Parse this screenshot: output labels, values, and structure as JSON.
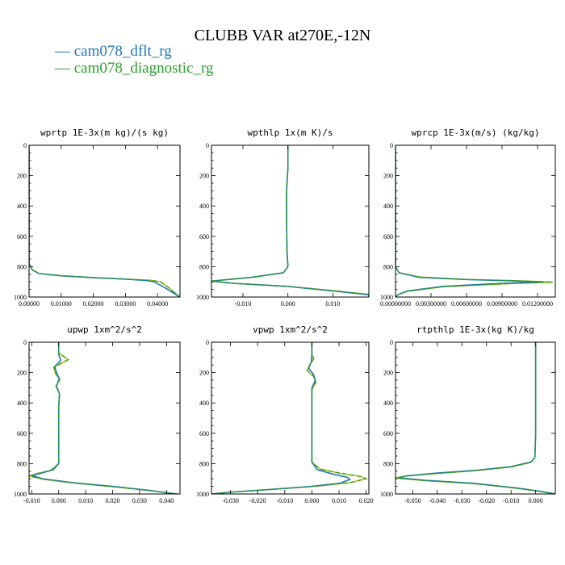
{
  "figure": {
    "title": "CLUBB VAR at270E,-12N",
    "legend": [
      {
        "name": "cam078_dflt_rg",
        "color": "#1f77b4",
        "dash": ""
      },
      {
        "name": "cam078_diagnostic_rg",
        "color": "#2ca02c",
        "dash": ""
      }
    ],
    "series_colors": {
      "dflt": "#1f77b4",
      "diagnostic": "#2ca02c",
      "diagnostic_alt": "#c8c800"
    }
  },
  "chart_data": [
    {
      "type": "line",
      "title": "wprtp  1E-3x(m kg)/(s kg)",
      "xlim": [
        0.0,
        0.047
      ],
      "ylim": [
        1000,
        0
      ],
      "xticks": [
        0.0,
        0.01,
        0.02,
        0.03,
        0.04
      ],
      "xtick_labels": [
        "0.00000",
        "0.01000",
        "0.02000",
        "0.03000",
        "0.04000"
      ],
      "yticks": [
        0,
        200,
        400,
        600,
        800,
        1000
      ],
      "series": [
        {
          "key": "dflt",
          "points": [
            [
              0,
              0
            ],
            [
              0,
              780
            ],
            [
              0.001,
              820
            ],
            [
              0.003,
              845
            ],
            [
              0.01,
              860
            ],
            [
              0.02,
              872
            ],
            [
              0.03,
              882
            ],
            [
              0.037,
              892
            ],
            [
              0.039,
              900
            ],
            [
              0.042,
              935
            ],
            [
              0.047,
              1000
            ]
          ]
        },
        {
          "key": "diagnostic",
          "points": [
            [
              0,
              0
            ],
            [
              0,
              780
            ],
            [
              0.001,
              820
            ],
            [
              0.003,
              845
            ],
            [
              0.01,
              860
            ],
            [
              0.02,
              872
            ],
            [
              0.03,
              882
            ],
            [
              0.038,
              890
            ],
            [
              0.041,
              900
            ],
            [
              0.043,
              930
            ],
            [
              0.047,
              1000
            ]
          ]
        }
      ]
    },
    {
      "type": "line",
      "title": "wpthlp  1x(m K)/s",
      "xlim": [
        -0.017,
        0.018
      ],
      "ylim": [
        1000,
        0
      ],
      "xticks": [
        -0.01,
        0.0,
        0.01
      ],
      "xtick_labels": [
        "-0.010",
        "0.000",
        "0.010"
      ],
      "yticks": [
        0,
        200,
        400,
        600,
        800,
        1000
      ],
      "series": [
        {
          "key": "dflt",
          "points": [
            [
              0,
              0
            ],
            [
              0,
              150
            ],
            [
              -0.0003,
              300
            ],
            [
              -0.0003,
              500
            ],
            [
              -0.0002,
              700
            ],
            [
              0,
              800
            ],
            [
              -0.001,
              840
            ],
            [
              -0.008,
              870
            ],
            [
              -0.017,
              895
            ],
            [
              -0.012,
              910
            ],
            [
              0.0,
              930
            ],
            [
              0.01,
              960
            ],
            [
              0.018,
              985
            ],
            [
              0.018,
              1000
            ]
          ]
        },
        {
          "key": "diagnostic",
          "points": [
            [
              0,
              0
            ],
            [
              0,
              150
            ],
            [
              -0.0003,
              300
            ],
            [
              -0.0003,
              500
            ],
            [
              -0.0002,
              700
            ],
            [
              0,
              800
            ],
            [
              -0.001,
              840
            ],
            [
              -0.008,
              870
            ],
            [
              -0.017,
              895
            ],
            [
              -0.012,
              910
            ],
            [
              0.0,
              930
            ],
            [
              0.01,
              958
            ],
            [
              0.018,
              983
            ],
            [
              0.018,
              1000
            ]
          ]
        }
      ]
    },
    {
      "type": "line",
      "title": "wprcp  1E-3x(m/s) (kg/kg)",
      "xlim": [
        0.0,
        0.0135
      ],
      "ylim": [
        1000,
        0
      ],
      "xticks": [
        0.0,
        0.003,
        0.006,
        0.009,
        0.012
      ],
      "xtick_labels": [
        "0.00000000",
        "0.00300000",
        "0.00600000",
        "0.00900000",
        "0.01200000"
      ],
      "yticks": [
        0,
        200,
        400,
        600,
        800,
        1000
      ],
      "series": [
        {
          "key": "dflt",
          "points": [
            [
              0,
              0
            ],
            [
              0,
              800
            ],
            [
              0.0003,
              840
            ],
            [
              0.002,
              870
            ],
            [
              0.006,
              885
            ],
            [
              0.0095,
              893
            ],
            [
              0.0125,
              900
            ],
            [
              0.009,
              910
            ],
            [
              0.004,
              930
            ],
            [
              0.001,
              960
            ],
            [
              0.0002,
              985
            ],
            [
              0,
              1000
            ]
          ]
        },
        {
          "key": "diagnostic",
          "points": [
            [
              0,
              0
            ],
            [
              0,
              800
            ],
            [
              0.0003,
              840
            ],
            [
              0.002,
              868
            ],
            [
              0.006,
              884
            ],
            [
              0.01,
              892
            ],
            [
              0.0133,
              902
            ],
            [
              0.0095,
              912
            ],
            [
              0.004,
              932
            ],
            [
              0.001,
              962
            ],
            [
              0.0002,
              985
            ],
            [
              0,
              1000
            ]
          ]
        }
      ]
    },
    {
      "type": "line",
      "title": "upwp  1xm^2/s^2",
      "xlim": [
        -0.011,
        0.045
      ],
      "ylim": [
        1000,
        0
      ],
      "xticks": [
        -0.01,
        0.0,
        0.01,
        0.02,
        0.03,
        0.04
      ],
      "xtick_labels": [
        "-0.010",
        "0.000",
        "0.010",
        "0.020",
        "0.030",
        "0.040"
      ],
      "yticks": [
        0,
        200,
        400,
        600,
        800,
        1000
      ],
      "series": [
        {
          "key": "dflt",
          "points": [
            [
              0,
              0
            ],
            [
              0,
              80
            ],
            [
              0.0008,
              120
            ],
            [
              -0.0015,
              160
            ],
            [
              -0.0008,
              200
            ],
            [
              0.0002,
              240
            ],
            [
              -0.0008,
              290
            ],
            [
              0.0003,
              340
            ],
            [
              0,
              420
            ],
            [
              0,
              600
            ],
            [
              0,
              800
            ],
            [
              -0.002,
              840
            ],
            [
              -0.006,
              860
            ],
            [
              -0.01,
              878
            ],
            [
              -0.006,
              900
            ],
            [
              0.005,
              925
            ],
            [
              0.02,
              950
            ],
            [
              0.033,
              975
            ],
            [
              0.044,
              1000
            ]
          ]
        },
        {
          "key": "diagnostic",
          "points": [
            [
              0,
              0
            ],
            [
              0,
              70
            ],
            [
              0.0035,
              115
            ],
            [
              -0.0018,
              165
            ],
            [
              -0.0012,
              205
            ],
            [
              0.0004,
              245
            ],
            [
              -0.001,
              290
            ],
            [
              0.0003,
              340
            ],
            [
              0,
              420
            ],
            [
              0,
              600
            ],
            [
              0,
              800
            ],
            [
              -0.003,
              845
            ],
            [
              -0.008,
              865
            ],
            [
              -0.011,
              882
            ],
            [
              -0.005,
              905
            ],
            [
              0.006,
              928
            ],
            [
              0.02,
              952
            ],
            [
              0.033,
              976
            ],
            [
              0.044,
              1000
            ]
          ]
        }
      ]
    },
    {
      "type": "line",
      "title": "vpwp  1xm^2/s^2",
      "xlim": [
        -0.037,
        0.021
      ],
      "ylim": [
        1000,
        0
      ],
      "xticks": [
        -0.03,
        -0.02,
        -0.01,
        0.0,
        0.01,
        0.02
      ],
      "xtick_labels": [
        "-0.030",
        "-0.020",
        "-0.010",
        "0.000",
        "0.010",
        "0.020"
      ],
      "yticks": [
        0,
        200,
        400,
        600,
        800,
        1000
      ],
      "series": [
        {
          "key": "dflt",
          "points": [
            [
              0,
              0
            ],
            [
              0,
              80
            ],
            [
              -0.0002,
              130
            ],
            [
              -0.0012,
              170
            ],
            [
              0.0005,
              210
            ],
            [
              0.0013,
              250
            ],
            [
              0,
              300
            ],
            [
              0,
              400
            ],
            [
              0,
              600
            ],
            [
              0,
              790
            ],
            [
              0.002,
              840
            ],
            [
              0.008,
              870
            ],
            [
              0.013,
              890
            ],
            [
              0.014,
              905
            ],
            [
              0.01,
              930
            ],
            [
              0,
              950
            ],
            [
              -0.015,
              970
            ],
            [
              -0.03,
              988
            ],
            [
              -0.037,
              1000
            ]
          ]
        },
        {
          "key": "diagnostic",
          "points": [
            [
              0,
              0
            ],
            [
              0,
              80
            ],
            [
              0.0007,
              110
            ],
            [
              -0.0008,
              150
            ],
            [
              -0.0018,
              185
            ],
            [
              0.0006,
              225
            ],
            [
              0.0015,
              265
            ],
            [
              0,
              310
            ],
            [
              0,
              400
            ],
            [
              0,
              600
            ],
            [
              0,
              790
            ],
            [
              0.003,
              835
            ],
            [
              0.01,
              862
            ],
            [
              0.018,
              885
            ],
            [
              0.02,
              900
            ],
            [
              0.014,
              925
            ],
            [
              0.002,
              948
            ],
            [
              -0.015,
              970
            ],
            [
              -0.03,
              988
            ],
            [
              -0.037,
              1000
            ]
          ]
        }
      ]
    },
    {
      "type": "line",
      "title": "rtpthlp  1E-3x(kg K)/kg",
      "xlim": [
        -0.057,
        0.008
      ],
      "ylim": [
        1000,
        0
      ],
      "xticks": [
        -0.05,
        -0.04,
        -0.03,
        -0.02,
        -0.01,
        0.0
      ],
      "xtick_labels": [
        "-0.050",
        "-0.040",
        "-0.030",
        "-0.020",
        "-0.010",
        "0.000"
      ],
      "yticks": [
        0,
        200,
        400,
        600,
        800,
        1000
      ],
      "series": [
        {
          "key": "dflt",
          "points": [
            [
              0,
              0
            ],
            [
              0,
              400
            ],
            [
              0,
              600
            ],
            [
              -0.0003,
              760
            ],
            [
              -0.002,
              790
            ],
            [
              -0.01,
              820
            ],
            [
              -0.025,
              845
            ],
            [
              -0.04,
              862
            ],
            [
              -0.052,
              880
            ],
            [
              -0.056,
              893
            ],
            [
              -0.045,
              910
            ],
            [
              -0.025,
              930
            ],
            [
              -0.008,
              960
            ],
            [
              0.003,
              985
            ],
            [
              0.008,
              1000
            ]
          ]
        },
        {
          "key": "diagnostic",
          "points": [
            [
              0,
              0
            ],
            [
              0,
              400
            ],
            [
              0,
              600
            ],
            [
              -0.0003,
              760
            ],
            [
              -0.002,
              792
            ],
            [
              -0.01,
              822
            ],
            [
              -0.025,
              847
            ],
            [
              -0.04,
              865
            ],
            [
              -0.053,
              882
            ],
            [
              -0.057,
              895
            ],
            [
              -0.045,
              912
            ],
            [
              -0.025,
              932
            ],
            [
              -0.008,
              962
            ],
            [
              0.003,
              986
            ],
            [
              0.008,
              1000
            ]
          ]
        }
      ]
    }
  ]
}
